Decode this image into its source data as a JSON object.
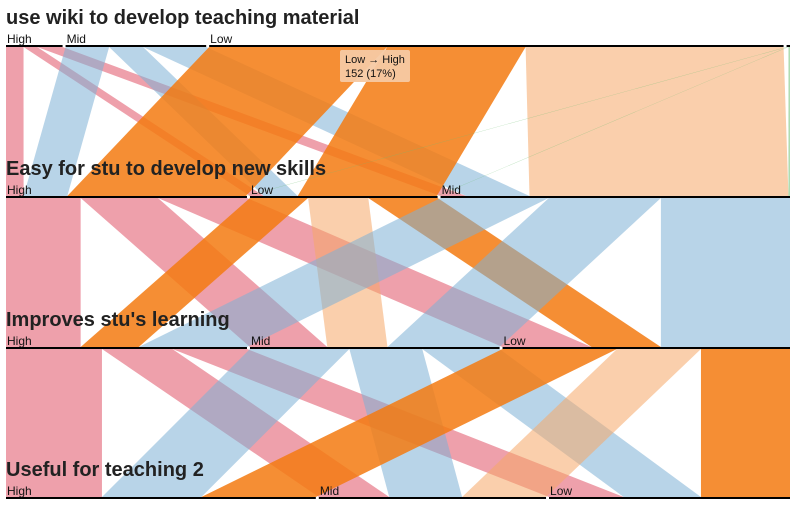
{
  "chart_data": {
    "type": "parallel-sets",
    "dimensions": [
      {
        "name": "use wiki to develop teaching material",
        "categories": [
          {
            "label": "High",
            "value": 66
          },
          {
            "label": "Mid",
            "value": 164
          },
          {
            "label": "Low",
            "value": 670
          },
          {
            "label": "",
            "value": 4
          }
        ]
      },
      {
        "name": "Easy for stu to develop new skills",
        "categories": [
          {
            "label": "High",
            "value": 280
          },
          {
            "label": "Low",
            "value": 218
          },
          {
            "label": "Mid",
            "value": 406
          }
        ]
      },
      {
        "name": "Improves stu's learning",
        "categories": [
          {
            "label": "High",
            "value": 280
          },
          {
            "label": "Mid",
            "value": 290
          },
          {
            "label": "Low",
            "value": 334
          }
        ]
      },
      {
        "name": "Useful for teaching 2",
        "categories": [
          {
            "label": "High",
            "value": 360
          },
          {
            "label": "Mid",
            "value": 264
          },
          {
            "label": "Low",
            "value": 280
          }
        ]
      }
    ],
    "ribbon_colors": {
      "High": "#e8808f",
      "Mid": "#7eb0d5",
      "Low": "#f5a867",
      "Low-strong": "#f37a10",
      "Other": "#6fbf73"
    },
    "tooltip": {
      "line1": "Low → High",
      "line2": "152 (17%)"
    }
  }
}
